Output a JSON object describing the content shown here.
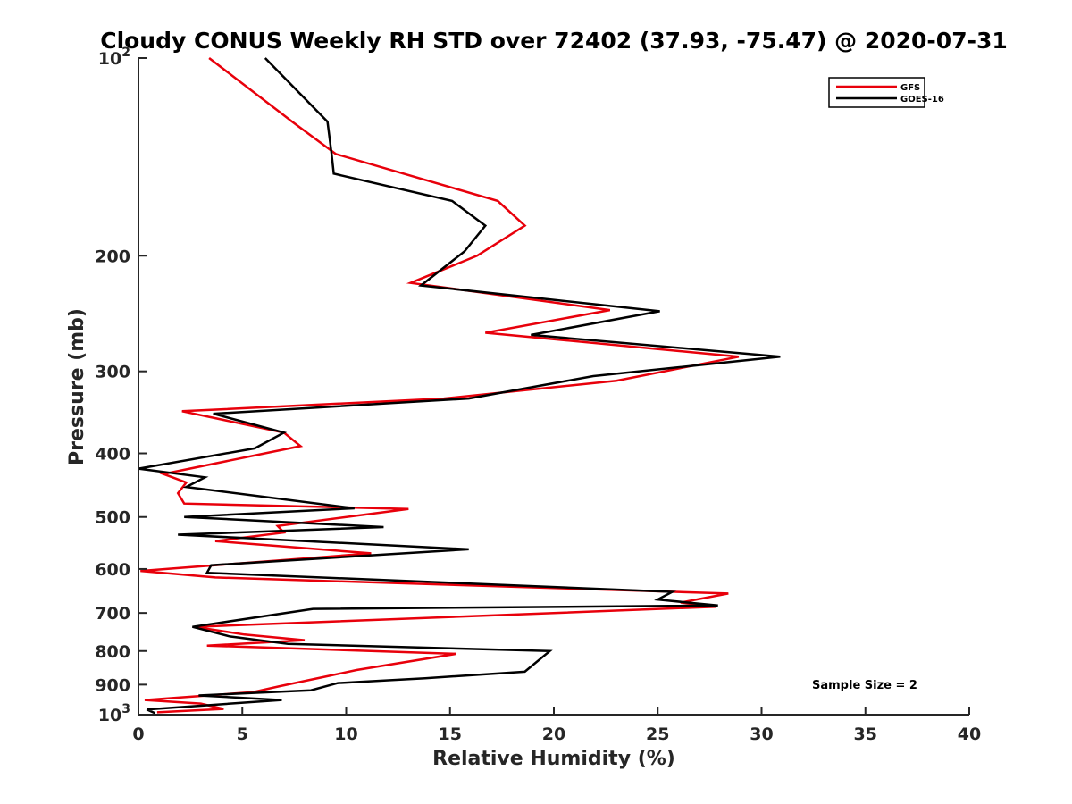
{
  "chart_data": {
    "type": "line",
    "title": "Cloudy CONUS Weekly RH STD over 72402 (37.93, -75.47) @ 2020-07-31",
    "xlabel": "Relative Humidity (%)",
    "ylabel": "Pressure (mb)",
    "xlim": [
      0,
      40
    ],
    "ylim": [
      100,
      1000
    ],
    "y_scale": "log",
    "y_reversed": true,
    "x_ticks": [
      0,
      5,
      10,
      15,
      20,
      25,
      30,
      35,
      40
    ],
    "x_tick_labels": [
      "0",
      "5",
      "10",
      "15",
      "20",
      "25",
      "30",
      "35",
      "40"
    ],
    "y_ticks": [
      100,
      200,
      300,
      400,
      500,
      600,
      700,
      800,
      900,
      1000
    ],
    "y_tick_labels": [
      "10^2",
      "200",
      "300",
      "400",
      "500",
      "600",
      "700",
      "800",
      "900",
      "10^3"
    ],
    "grid": false,
    "legend_position": "top-right",
    "annotation": "Sample Size = 2",
    "series": [
      {
        "name": "GFS",
        "color": "#e8000b",
        "x": [
          3.4,
          7.4,
          9.5,
          17.3,
          18.6,
          16.3,
          13.1,
          22.7,
          16.7,
          28.9,
          23.0,
          14.7,
          2.1,
          7.0,
          7.8,
          1.2,
          2.3,
          1.9,
          2.2,
          13.0,
          6.7,
          7.0,
          3.7,
          11.2,
          0.1,
          3.7,
          28.4,
          26.1,
          27.8,
          2.7,
          5.1,
          8.0,
          3.3,
          15.3,
          10.5,
          9.0,
          6.8,
          5.5,
          0.3,
          3.0,
          4.1,
          0.9
        ],
        "y": [
          100,
          125,
          140,
          165,
          180,
          200,
          220,
          242,
          262,
          285,
          310,
          330,
          345,
          372,
          390,
          430,
          443,
          460,
          477,
          486,
          516,
          528,
          544,
          568,
          604,
          618,
          654,
          675,
          685,
          735,
          755,
          770,
          785,
          808,
          855,
          875,
          905,
          924,
          950,
          962,
          980,
          992
        ]
      },
      {
        "name": "GOES-16",
        "color": "#000000",
        "x": [
          6.1,
          9.1,
          9.3,
          9.4,
          15.1,
          16.7,
          15.7,
          13.6,
          25.1,
          18.9,
          30.9,
          21.9,
          15.9,
          3.6,
          7.0,
          5.6,
          0.0,
          3.2,
          2.3,
          10.4,
          2.2,
          11.8,
          1.9,
          15.9,
          3.5,
          3.3,
          25.7,
          25.0,
          27.9,
          8.4,
          2.6,
          4.4,
          7.2,
          19.8,
          18.6,
          13.8,
          9.6,
          8.3,
          2.9,
          6.9,
          0.4,
          0.8
        ],
        "y": [
          100,
          125,
          140,
          150,
          165,
          180,
          197,
          222,
          243,
          264,
          285,
          305,
          330,
          348,
          372,
          393,
          422,
          435,
          450,
          485,
          500,
          518,
          532,
          560,
          592,
          608,
          650,
          668,
          682,
          690,
          735,
          760,
          780,
          800,
          860,
          880,
          895,
          918,
          935,
          950,
          982,
          995
        ]
      }
    ]
  }
}
